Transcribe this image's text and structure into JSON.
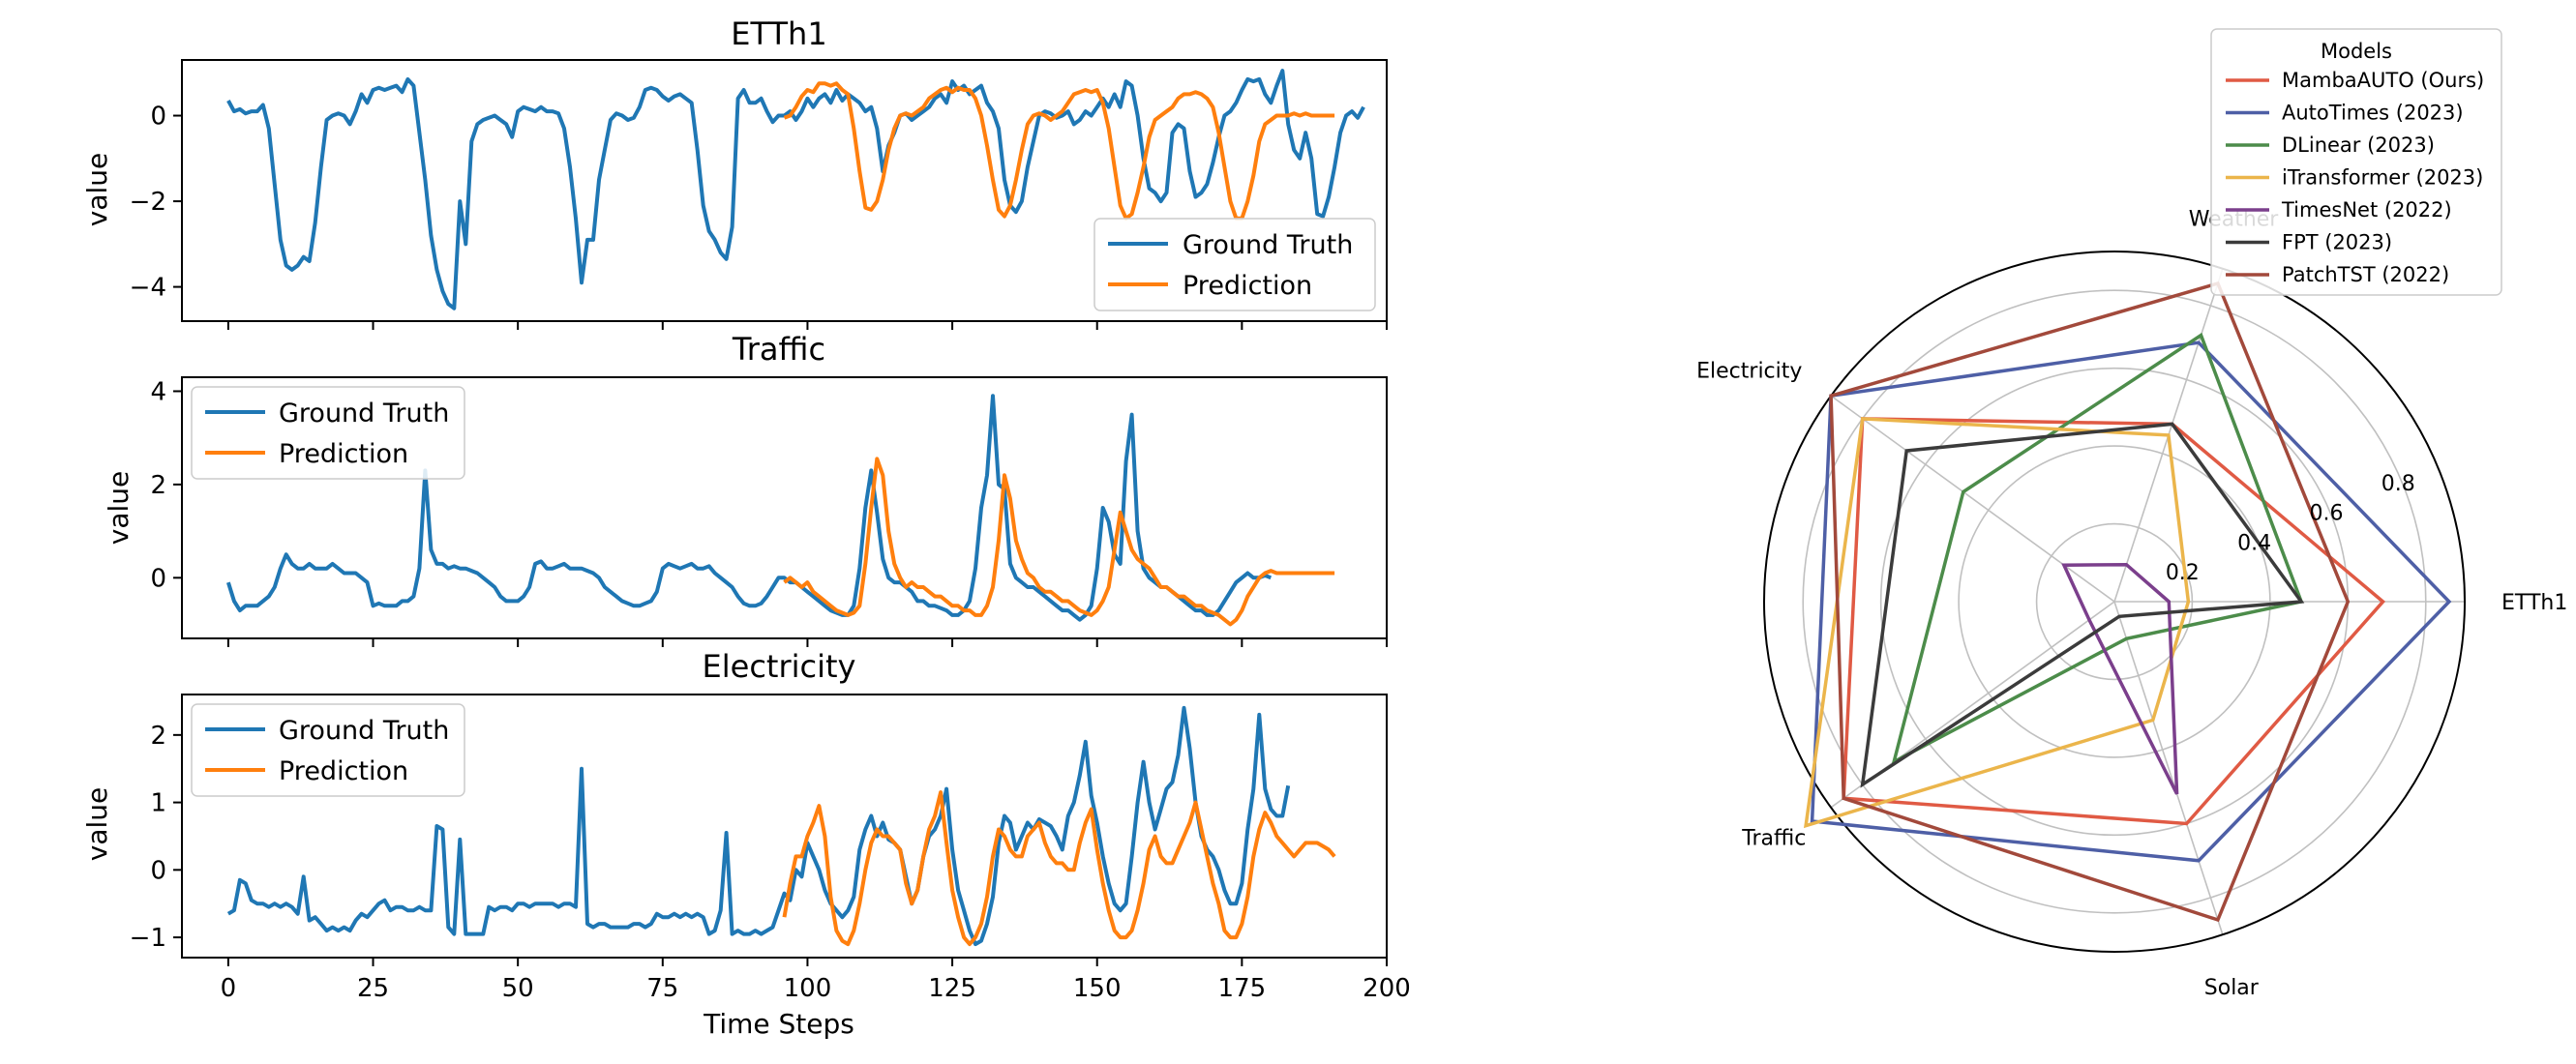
{
  "chart_data": [
    {
      "type": "line",
      "title": "ETTh1",
      "ylabel": "value",
      "xlim": [
        -8,
        200
      ],
      "ylim": [
        -4.8,
        1.3
      ],
      "yticks": [
        0,
        -2,
        -4
      ],
      "xticks": [
        0,
        25,
        50,
        75,
        100,
        125,
        150,
        175,
        200
      ],
      "show_xtick_labels": false,
      "legend": "lower-right",
      "series": [
        {
          "name": "Ground Truth",
          "color": "#1f77b4",
          "start": 0,
          "values": [
            0.35,
            0.1,
            0.15,
            0.05,
            0.1,
            0.1,
            0.25,
            -0.3,
            -1.6,
            -2.9,
            -3.5,
            -3.6,
            -3.5,
            -3.3,
            -3.4,
            -2.5,
            -1.2,
            -0.1,
            0.0,
            0.05,
            0.0,
            -0.2,
            0.1,
            0.5,
            0.3,
            0.6,
            0.65,
            0.6,
            0.65,
            0.7,
            0.55,
            0.85,
            0.7,
            -0.4,
            -1.5,
            -2.8,
            -3.6,
            -4.1,
            -4.4,
            -4.5,
            -2.0,
            -3.0,
            -0.6,
            -0.2,
            -0.1,
            -0.05,
            0.0,
            -0.1,
            -0.2,
            -0.5,
            0.1,
            0.2,
            0.15,
            0.1,
            0.2,
            0.1,
            0.1,
            0.05,
            -0.3,
            -1.2,
            -2.4,
            -3.9,
            -2.9,
            -2.9,
            -1.5,
            -0.8,
            -0.1,
            0.05,
            0.0,
            -0.1,
            -0.05,
            0.2,
            0.6,
            0.65,
            0.6,
            0.45,
            0.35,
            0.45,
            0.5,
            0.4,
            0.3,
            -0.8,
            -2.1,
            -2.7,
            -2.9,
            -3.2,
            -3.35,
            -2.6,
            0.4,
            0.6,
            0.3,
            0.3,
            0.4,
            0.1,
            -0.15,
            0.0,
            0.0,
            0.1,
            -0.1,
            0.1,
            0.4,
            0.2,
            0.4,
            0.5,
            0.3,
            0.6,
            0.35,
            0.5,
            0.4,
            0.3,
            0.1,
            0.2,
            -0.3,
            -1.3,
            -0.7,
            -0.4,
            0.0,
            0.05,
            -0.1,
            0.0,
            0.1,
            0.2,
            0.4,
            0.5,
            0.3,
            0.8,
            0.6,
            0.7,
            0.5,
            0.6,
            0.7,
            0.3,
            0.1,
            -0.3,
            -1.5,
            -2.1,
            -2.25,
            -2.0,
            -1.2,
            -0.6,
            0.0,
            0.1,
            0.05,
            -0.05,
            0.0,
            0.1,
            -0.2,
            -0.1,
            0.1,
            0.0,
            0.2,
            0.4,
            0.2,
            0.5,
            0.2,
            0.8,
            0.7,
            0.0,
            -1.0,
            -1.7,
            -1.8,
            -2.0,
            -1.8,
            -0.4,
            -0.2,
            -0.3,
            -1.3,
            -1.9,
            -1.8,
            -1.6,
            -1.1,
            -0.5,
            0.0,
            0.1,
            0.3,
            0.6,
            0.85,
            0.8,
            0.85,
            0.5,
            0.3,
            0.7,
            1.05,
            -0.2,
            -0.8,
            -1.0,
            -0.4,
            -1.0,
            -2.3,
            -2.35,
            -1.9,
            -1.2,
            -0.4,
            0.0,
            0.1,
            -0.05,
            0.2
          ]
        },
        {
          "name": "Prediction",
          "color": "#ff7f0e",
          "start": 96,
          "values": [
            -0.05,
            0.0,
            0.2,
            0.45,
            0.6,
            0.55,
            0.75,
            0.75,
            0.7,
            0.75,
            0.6,
            0.5,
            -0.3,
            -1.3,
            -2.15,
            -2.2,
            -2.0,
            -1.5,
            -0.8,
            -0.3,
            0.0,
            0.05,
            0.0,
            0.1,
            0.2,
            0.4,
            0.5,
            0.6,
            0.65,
            0.55,
            0.65,
            0.6,
            0.6,
            0.4,
            0.0,
            -0.7,
            -1.5,
            -2.2,
            -2.35,
            -2.1,
            -1.5,
            -0.8,
            -0.2,
            0.0,
            0.05,
            0.0,
            -0.1,
            0.0,
            0.1,
            0.3,
            0.5,
            0.55,
            0.6,
            0.55,
            0.6,
            0.3,
            -0.3,
            -1.2,
            -2.1,
            -2.4,
            -2.3,
            -1.8,
            -1.2,
            -0.5,
            -0.1,
            0.0,
            0.1,
            0.2,
            0.4,
            0.5,
            0.5,
            0.55,
            0.5,
            0.4,
            0.2,
            -0.4,
            -1.2,
            -2.0,
            -2.4,
            -2.4,
            -2.0,
            -1.4,
            -0.6,
            -0.2,
            -0.1,
            0.0,
            0.0,
            0.0,
            0.05,
            0.0,
            0.05,
            0.0,
            0.0,
            0.0,
            0.0,
            0.0
          ]
        }
      ]
    },
    {
      "type": "line",
      "title": "Traffic",
      "ylabel": "value",
      "xlim": [
        -8,
        200
      ],
      "ylim": [
        -1.3,
        4.3
      ],
      "yticks": [
        4,
        2,
        0
      ],
      "xticks": [
        0,
        25,
        50,
        75,
        100,
        125,
        150,
        175,
        200
      ],
      "show_xtick_labels": false,
      "legend": "upper-left",
      "series": [
        {
          "name": "Ground Truth",
          "color": "#1f77b4",
          "start": 0,
          "values": [
            -0.1,
            -0.5,
            -0.7,
            -0.6,
            -0.6,
            -0.6,
            -0.5,
            -0.4,
            -0.2,
            0.2,
            0.5,
            0.3,
            0.2,
            0.2,
            0.3,
            0.2,
            0.2,
            0.2,
            0.3,
            0.2,
            0.1,
            0.1,
            0.1,
            0.0,
            -0.1,
            -0.6,
            -0.55,
            -0.6,
            -0.6,
            -0.6,
            -0.5,
            -0.5,
            -0.4,
            0.2,
            2.3,
            0.6,
            0.3,
            0.3,
            0.2,
            0.25,
            0.2,
            0.2,
            0.15,
            0.1,
            0.0,
            -0.1,
            -0.2,
            -0.4,
            -0.5,
            -0.5,
            -0.5,
            -0.4,
            -0.2,
            0.3,
            0.35,
            0.2,
            0.2,
            0.25,
            0.3,
            0.2,
            0.2,
            0.2,
            0.15,
            0.1,
            0.0,
            -0.2,
            -0.3,
            -0.4,
            -0.5,
            -0.55,
            -0.6,
            -0.6,
            -0.55,
            -0.5,
            -0.3,
            0.2,
            0.3,
            0.25,
            0.2,
            0.25,
            0.3,
            0.2,
            0.2,
            0.25,
            0.1,
            0.0,
            -0.1,
            -0.2,
            -0.4,
            -0.55,
            -0.6,
            -0.6,
            -0.55,
            -0.4,
            -0.2,
            0.0,
            0.0,
            -0.1,
            -0.1,
            -0.2,
            -0.3,
            -0.4,
            -0.5,
            -0.6,
            -0.7,
            -0.75,
            -0.8,
            -0.8,
            -0.6,
            0.2,
            1.5,
            2.3,
            1.4,
            0.4,
            0.0,
            -0.1,
            -0.1,
            -0.2,
            -0.3,
            -0.5,
            -0.5,
            -0.6,
            -0.6,
            -0.65,
            -0.7,
            -0.8,
            -0.8,
            -0.7,
            -0.5,
            0.2,
            1.5,
            2.2,
            3.9,
            2.0,
            1.9,
            0.3,
            0.0,
            -0.1,
            -0.2,
            -0.2,
            -0.3,
            -0.4,
            -0.5,
            -0.6,
            -0.7,
            -0.7,
            -0.8,
            -0.9,
            -0.8,
            -0.6,
            0.2,
            1.5,
            1.2,
            0.5,
            0.3,
            2.5,
            3.5,
            1.0,
            0.2,
            0.0,
            -0.1,
            -0.2,
            -0.2,
            -0.3,
            -0.4,
            -0.5,
            -0.6,
            -0.7,
            -0.7,
            -0.8,
            -0.8,
            -0.7,
            -0.5,
            -0.3,
            -0.1,
            0.0,
            0.1,
            0.0,
            0.0,
            0.05,
            0.0
          ]
        },
        {
          "name": "Prediction",
          "color": "#ff7f0e",
          "start": 96,
          "values": [
            -0.1,
            0.0,
            -0.1,
            -0.2,
            -0.1,
            -0.3,
            -0.4,
            -0.5,
            -0.6,
            -0.7,
            -0.75,
            -0.8,
            -0.75,
            -0.6,
            0.3,
            1.5,
            2.55,
            2.2,
            1.0,
            0.3,
            0.0,
            -0.2,
            -0.1,
            -0.2,
            -0.2,
            -0.3,
            -0.4,
            -0.4,
            -0.5,
            -0.6,
            -0.6,
            -0.7,
            -0.7,
            -0.8,
            -0.8,
            -0.6,
            -0.2,
            0.8,
            2.2,
            1.7,
            0.8,
            0.4,
            0.1,
            0.0,
            -0.2,
            -0.3,
            -0.3,
            -0.4,
            -0.5,
            -0.5,
            -0.6,
            -0.7,
            -0.75,
            -0.8,
            -0.7,
            -0.5,
            -0.2,
            0.6,
            1.4,
            1.0,
            0.6,
            0.4,
            0.3,
            0.2,
            0.0,
            -0.2,
            -0.2,
            -0.3,
            -0.4,
            -0.4,
            -0.5,
            -0.6,
            -0.6,
            -0.7,
            -0.75,
            -0.8,
            -0.9,
            -1.0,
            -0.9,
            -0.7,
            -0.4,
            -0.2,
            0.0,
            0.1,
            0.15,
            0.1,
            0.1,
            0.1,
            0.1,
            0.1,
            0.1,
            0.1,
            0.1,
            0.1,
            0.1,
            0.1
          ]
        }
      ]
    },
    {
      "type": "line",
      "title": "Electricity",
      "ylabel": "value",
      "xlabel": "Time Steps",
      "xlim": [
        -8,
        200
      ],
      "ylim": [
        -1.3,
        2.6
      ],
      "yticks": [
        2,
        1,
        0,
        -1
      ],
      "xticks": [
        0,
        25,
        50,
        75,
        100,
        125,
        150,
        175,
        200
      ],
      "show_xtick_labels": true,
      "legend": "upper-left",
      "series": [
        {
          "name": "Ground Truth",
          "color": "#1f77b4",
          "start": 0,
          "values": [
            -0.65,
            -0.6,
            -0.15,
            -0.2,
            -0.45,
            -0.5,
            -0.5,
            -0.55,
            -0.5,
            -0.55,
            -0.5,
            -0.55,
            -0.65,
            -0.1,
            -0.75,
            -0.7,
            -0.8,
            -0.9,
            -0.85,
            -0.9,
            -0.85,
            -0.9,
            -0.75,
            -0.65,
            -0.7,
            -0.6,
            -0.5,
            -0.45,
            -0.6,
            -0.55,
            -0.55,
            -0.6,
            -0.6,
            -0.55,
            -0.6,
            -0.6,
            0.65,
            0.6,
            -0.85,
            -0.95,
            0.45,
            -0.95,
            -0.95,
            -0.95,
            -0.95,
            -0.55,
            -0.6,
            -0.55,
            -0.55,
            -0.6,
            -0.5,
            -0.5,
            -0.55,
            -0.5,
            -0.5,
            -0.5,
            -0.5,
            -0.55,
            -0.5,
            -0.5,
            -0.55,
            1.5,
            -0.8,
            -0.85,
            -0.8,
            -0.8,
            -0.85,
            -0.85,
            -0.85,
            -0.85,
            -0.8,
            -0.8,
            -0.85,
            -0.8,
            -0.65,
            -0.7,
            -0.7,
            -0.65,
            -0.7,
            -0.65,
            -0.7,
            -0.65,
            -0.7,
            -0.95,
            -0.9,
            -0.6,
            0.55,
            -0.95,
            -0.9,
            -0.95,
            -0.95,
            -0.9,
            -0.95,
            -0.9,
            -0.85,
            -0.6,
            -0.35,
            -0.45,
            0.0,
            -0.1,
            0.4,
            0.2,
            0.0,
            -0.3,
            -0.5,
            -0.6,
            -0.7,
            -0.6,
            -0.4,
            0.3,
            0.6,
            0.8,
            0.5,
            0.7,
            0.45,
            0.4,
            0.3,
            -0.1,
            -0.5,
            -0.3,
            0.2,
            0.5,
            0.6,
            0.8,
            1.2,
            0.3,
            -0.3,
            -0.6,
            -0.9,
            -1.1,
            -1.05,
            -0.8,
            -0.4,
            0.4,
            0.8,
            0.7,
            0.3,
            0.5,
            0.7,
            0.6,
            0.75,
            0.7,
            0.65,
            0.5,
            0.3,
            0.8,
            1.0,
            1.4,
            1.9,
            1.1,
            0.7,
            0.2,
            -0.2,
            -0.5,
            -0.6,
            -0.5,
            0.2,
            1.0,
            1.6,
            1.0,
            0.6,
            0.9,
            1.2,
            1.3,
            1.7,
            2.4,
            1.8,
            1.0,
            0.5,
            0.3,
            0.2,
            0.0,
            -0.3,
            -0.5,
            -0.5,
            -0.2,
            0.6,
            1.2,
            2.3,
            1.2,
            0.9,
            0.8,
            0.8,
            1.25
          ]
        },
        {
          "name": "Prediction",
          "color": "#ff7f0e",
          "start": 96,
          "values": [
            -0.7,
            -0.2,
            0.2,
            0.2,
            0.5,
            0.7,
            0.95,
            0.5,
            -0.4,
            -0.9,
            -1.05,
            -1.1,
            -0.9,
            -0.5,
            0.0,
            0.4,
            0.6,
            0.5,
            0.5,
            0.4,
            0.3,
            -0.2,
            -0.5,
            -0.3,
            0.2,
            0.6,
            0.8,
            1.15,
            0.4,
            -0.3,
            -0.7,
            -1.0,
            -1.1,
            -1.0,
            -0.8,
            -0.4,
            0.2,
            0.6,
            0.5,
            0.3,
            0.2,
            0.2,
            0.5,
            0.6,
            0.7,
            0.4,
            0.2,
            0.1,
            0.1,
            0.0,
            0.0,
            0.4,
            0.7,
            0.9,
            0.3,
            -0.2,
            -0.6,
            -0.9,
            -1.0,
            -1.0,
            -0.9,
            -0.6,
            -0.2,
            0.3,
            0.5,
            0.2,
            0.1,
            0.1,
            0.3,
            0.5,
            0.7,
            1.0,
            0.6,
            0.2,
            -0.2,
            -0.5,
            -0.9,
            -1.0,
            -1.0,
            -0.8,
            -0.4,
            0.2,
            0.6,
            0.85,
            0.7,
            0.5,
            0.4,
            0.3,
            0.2,
            0.3,
            0.4,
            0.4,
            0.4,
            0.35,
            0.3,
            0.2
          ]
        }
      ]
    },
    {
      "type": "radar",
      "axes": [
        "ETTh1",
        "Weather",
        "Electricity",
        "Traffic",
        "Solar"
      ],
      "rmax": 0.9,
      "rticks": [
        0.2,
        0.4,
        0.6,
        0.8
      ],
      "rtick_labels": [
        "0.2",
        "0.4",
        "0.6",
        "0.8"
      ],
      "legend": "upper-right",
      "legend_title": "Models",
      "series": [
        {
          "name": "MambaAUTO (Ours)",
          "color": "#e05a44",
          "values": [
            0.69,
            0.48,
            0.8,
            0.86,
            0.6
          ]
        },
        {
          "name": "AutoTimes (2023)",
          "color": "#4e5fa6",
          "values": [
            0.86,
            0.7,
            0.9,
            0.96,
            0.7
          ]
        },
        {
          "name": "DLinear (2023)",
          "color": "#4c8c4a",
          "values": [
            0.48,
            0.72,
            0.48,
            0.7,
            0.1
          ]
        },
        {
          "name": "iTransformer (2023)",
          "color": "#ebb54b",
          "values": [
            0.19,
            0.45,
            0.8,
            0.98,
            0.32
          ]
        },
        {
          "name": "TimesNet (2022)",
          "color": "#7b3f8c",
          "values": [
            0.14,
            0.1,
            0.16,
            0.08,
            0.52
          ]
        },
        {
          "name": "FPT (2023)",
          "color": "#3b3b3b",
          "values": [
            0.48,
            0.48,
            0.66,
            0.8,
            0.04
          ]
        },
        {
          "name": "PatchTST (2022)",
          "color": "#a2493b",
          "values": [
            0.6,
            0.86,
            0.9,
            0.86,
            0.86
          ]
        }
      ]
    }
  ]
}
